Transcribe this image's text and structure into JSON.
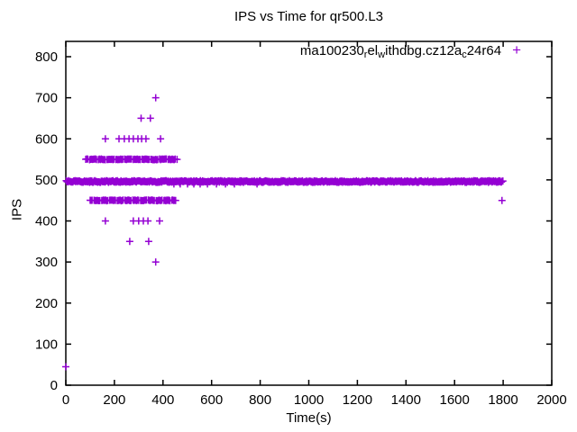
{
  "chart": {
    "title": "IPS vs Time for qr500.L3",
    "xlabel": "Time(s)",
    "ylabel": "IPS",
    "background_color": "#ffffff",
    "border_color": "#000000",
    "series_color": "#9400d3",
    "legend": {
      "plain": "ma100230_rel_withdbg.cz12a_c24r64",
      "parts": [
        {
          "t": "ma100230"
        },
        {
          "s": "r"
        },
        {
          "t": "el"
        },
        {
          "s": "w"
        },
        {
          "t": "ithdbg.cz12a"
        },
        {
          "s": "c"
        },
        {
          "t": "24r64"
        }
      ],
      "marker_glyph": "+"
    }
  },
  "chart_data": {
    "type": "scatter",
    "title": "IPS vs Time for qr500.L3",
    "xlabel": "Time(s)",
    "ylabel": "IPS",
    "xlim": [
      0,
      2000
    ],
    "ylim": [
      0,
      800
    ],
    "x_ticks": [
      0,
      200,
      400,
      600,
      800,
      1000,
      1200,
      1400,
      1600,
      1800,
      2000
    ],
    "y_ticks": [
      0,
      100,
      200,
      300,
      400,
      500,
      600,
      700,
      800
    ],
    "grid": false,
    "ticks_mirrored": true,
    "legend_position": "top-right-inside",
    "series": [
      {
        "name": "ma100230_rel_withdbg.cz12a_c24r64",
        "color": "#9400d3",
        "marker": "plus",
        "summary": "IPS sits in a dense band at ~495-500 from t=0 to t=1800; start-up scatter between t=80 and t=460 spans 300-700 IPS; lone points at (0,~45) and (~1795,450).",
        "clusters": [
          {
            "kind": "dense",
            "ips": 496,
            "jitter": 2,
            "from": 2,
            "to": 1800,
            "step": 3,
            "note": "main steady-state band"
          },
          {
            "kind": "dense",
            "ips": 550,
            "jitter": 1,
            "from": 82,
            "to": 460,
            "step": 4,
            "gap_every": 9
          },
          {
            "kind": "dense",
            "ips": 450,
            "jitter": 1,
            "from": 100,
            "to": 455,
            "step": 4,
            "gap_every": 8
          },
          {
            "kind": "points",
            "ips": 700,
            "times": [
              370
            ]
          },
          {
            "kind": "points",
            "ips": 650,
            "times": [
              310,
              348
            ]
          },
          {
            "kind": "points",
            "ips": 600,
            "times": [
              163,
              219,
              241,
              260,
              278,
              297,
              312,
              330,
              390
            ]
          },
          {
            "kind": "points",
            "ips": 490,
            "times": [
              445,
              471,
              501,
              527,
              553,
              583,
              620,
              657,
              694,
              787
            ]
          },
          {
            "kind": "points",
            "ips": 400,
            "times": [
              163,
              278,
              300,
              319,
              338,
              386
            ]
          },
          {
            "kind": "points",
            "ips": 350,
            "times": [
              263,
              341
            ]
          },
          {
            "kind": "points",
            "ips": 300,
            "times": [
              370
            ]
          },
          {
            "kind": "points",
            "ips": 45,
            "times": [
              0
            ]
          },
          {
            "kind": "points",
            "ips": 450,
            "times": [
              1795
            ]
          }
        ]
      }
    ]
  }
}
